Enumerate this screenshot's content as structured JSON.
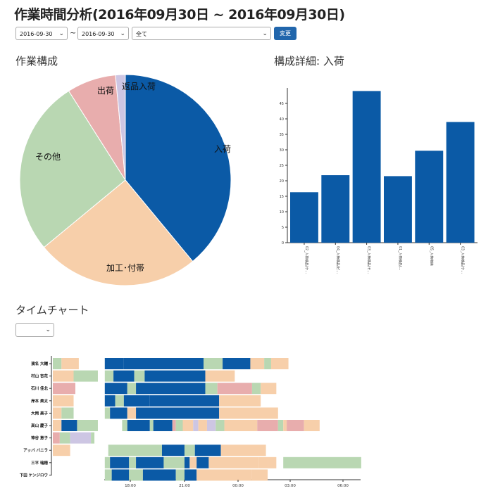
{
  "page": {
    "title": "作業時間分析(2016年09月30日 ~ 2016年09月30日)",
    "date_from": "2016-09-30",
    "date_to": "2016-09-30",
    "tilde": "~",
    "filter_value": "全て",
    "submit_label": "変更"
  },
  "sections": {
    "composition_title": "作業構成",
    "detail_title": "構成詳細: 入荷",
    "timechart_title": "タイムチャート",
    "timechart_select_value": ""
  },
  "colors": {
    "dark_blue": "#0b5aa6",
    "peach": "#f7cfaa",
    "green": "#b9d7b2",
    "pink": "#e8adad",
    "lavender": "#cdc6e3"
  },
  "chart_data": [
    {
      "type": "pie",
      "labels": [
        "入荷",
        "加工･付帯",
        "その他",
        "出荷",
        "返品入荷"
      ],
      "values": [
        39,
        25,
        27,
        7.5,
        1.5
      ],
      "colors": [
        "#0b5aa6",
        "#f7cfaa",
        "#b9d7b2",
        "#e8adad",
        "#cdc6e3"
      ]
    },
    {
      "type": "bar",
      "categories": [
        "02_入荷検品(ケ…",
        "04_入荷検品(ピ…",
        "03_入荷検品(そ…",
        "01_入荷検品(…",
        "05_入荷格納",
        "03_入荷検品(ケ…"
      ],
      "values": [
        16.3,
        21.8,
        49,
        21.5,
        29.7,
        39
      ],
      "ylim": [
        0,
        50
      ],
      "yticks": [
        "0",
        "5",
        "10",
        "15",
        "20",
        "25",
        "30",
        "35",
        "40",
        "45"
      ],
      "color": "#0b5aa6"
    },
    {
      "type": "timeline",
      "rows": [
        "濱名 大輔",
        "村山 杏花",
        "石川 佳北",
        "岸本 美太",
        "大岡 美子",
        "高山 慶子",
        "神谷 恵子",
        "アッバ バニラ",
        "三平 瑞穂",
        "下田 ケンジロウ"
      ],
      "xticks": [
        "18:00",
        "21:00",
        "00:00",
        "03:00",
        "06:00"
      ],
      "segments": [
        [
          [
            0.0,
            0.5,
            "green"
          ],
          [
            0.5,
            1.5,
            "peach"
          ],
          [
            3.0,
            4.1,
            "dark_blue"
          ],
          [
            4.1,
            8.7,
            "dark_blue"
          ],
          [
            8.7,
            9.8,
            "green"
          ],
          [
            9.8,
            11.4,
            "dark_blue"
          ],
          [
            11.4,
            12.2,
            "peach"
          ],
          [
            12.2,
            12.6,
            "green"
          ],
          [
            12.6,
            13.6,
            "peach"
          ]
        ],
        [
          [
            0.0,
            1.2,
            "peach"
          ],
          [
            1.2,
            2.6,
            "green"
          ],
          [
            3.0,
            3.5,
            "green"
          ],
          [
            3.5,
            4.7,
            "dark_blue"
          ],
          [
            4.7,
            5.3,
            "green"
          ],
          [
            5.3,
            8.8,
            "dark_blue"
          ],
          [
            8.8,
            10.5,
            "peach"
          ]
        ],
        [
          [
            0.0,
            1.3,
            "pink"
          ],
          [
            3.0,
            4.3,
            "dark_blue"
          ],
          [
            4.3,
            4.8,
            "green"
          ],
          [
            4.8,
            8.8,
            "dark_blue"
          ],
          [
            8.8,
            9.5,
            "green"
          ],
          [
            9.5,
            11.5,
            "pink"
          ],
          [
            11.5,
            12.0,
            "green"
          ],
          [
            12.0,
            12.9,
            "peach"
          ]
        ],
        [
          [
            0.0,
            1.2,
            "peach"
          ],
          [
            3.0,
            3.6,
            "dark_blue"
          ],
          [
            3.6,
            4.1,
            "green"
          ],
          [
            4.1,
            5.6,
            "dark_blue"
          ],
          [
            5.6,
            9.6,
            "dark_blue"
          ],
          [
            9.6,
            12.0,
            "peach"
          ]
        ],
        [
          [
            0.0,
            0.5,
            "peach"
          ],
          [
            0.5,
            1.2,
            "green"
          ],
          [
            3.0,
            3.3,
            "green"
          ],
          [
            3.3,
            4.3,
            "dark_blue"
          ],
          [
            4.3,
            4.8,
            "peach"
          ],
          [
            4.8,
            9.6,
            "dark_blue"
          ],
          [
            9.6,
            13.0,
            "peach"
          ]
        ],
        [
          [
            0.0,
            0.5,
            "peach"
          ],
          [
            0.5,
            1.4,
            "dark_blue"
          ],
          [
            1.4,
            2.6,
            "green"
          ],
          [
            4.0,
            4.3,
            "green"
          ],
          [
            4.3,
            5.6,
            "dark_blue"
          ],
          [
            5.6,
            5.8,
            "green"
          ],
          [
            5.8,
            6.9,
            "dark_blue"
          ],
          [
            6.9,
            7.1,
            "pink"
          ],
          [
            7.1,
            7.5,
            "green"
          ],
          [
            7.5,
            8.1,
            "peach"
          ],
          [
            8.1,
            8.4,
            "lavender"
          ],
          [
            8.4,
            8.9,
            "peach"
          ],
          [
            8.9,
            9.4,
            "lavender"
          ],
          [
            9.4,
            9.9,
            "green"
          ],
          [
            9.9,
            11.8,
            "peach"
          ],
          [
            11.8,
            13.0,
            "pink"
          ],
          [
            13.0,
            13.3,
            "green"
          ],
          [
            13.3,
            13.5,
            "peach"
          ],
          [
            13.5,
            14.5,
            "pink"
          ],
          [
            14.5,
            15.4,
            "peach"
          ]
        ],
        [
          [
            0.0,
            0.4,
            "pink"
          ],
          [
            0.4,
            1.0,
            "green"
          ],
          [
            1.0,
            2.2,
            "lavender"
          ],
          [
            2.2,
            2.4,
            "green"
          ]
        ],
        [
          [
            0.0,
            1.0,
            "peach"
          ],
          [
            3.2,
            6.3,
            "green"
          ],
          [
            6.3,
            7.6,
            "dark_blue"
          ],
          [
            7.6,
            8.2,
            "green"
          ],
          [
            8.2,
            9.7,
            "dark_blue"
          ],
          [
            9.7,
            12.3,
            "peach"
          ]
        ],
        [
          [
            3.0,
            3.3,
            "green"
          ],
          [
            3.3,
            4.4,
            "dark_blue"
          ],
          [
            4.4,
            4.8,
            "green"
          ],
          [
            4.8,
            6.4,
            "dark_blue"
          ],
          [
            6.4,
            7.6,
            "green"
          ],
          [
            7.6,
            7.9,
            "dark_blue"
          ],
          [
            7.9,
            8.3,
            "peach"
          ],
          [
            8.3,
            9.0,
            "dark_blue"
          ],
          [
            9.0,
            11.9,
            "peach"
          ],
          [
            11.9,
            12.4,
            "peach"
          ],
          [
            12.4,
            12.9,
            "peach"
          ],
          [
            13.3,
            17.8,
            "green"
          ]
        ],
        [
          [
            3.0,
            3.4,
            "green"
          ],
          [
            3.4,
            4.4,
            "dark_blue"
          ],
          [
            4.4,
            5.2,
            "green"
          ],
          [
            5.2,
            7.1,
            "dark_blue"
          ],
          [
            7.1,
            7.6,
            "green"
          ],
          [
            7.6,
            8.3,
            "dark_blue"
          ],
          [
            8.3,
            11.5,
            "peach"
          ],
          [
            11.5,
            12.4,
            "peach"
          ]
        ]
      ]
    }
  ]
}
